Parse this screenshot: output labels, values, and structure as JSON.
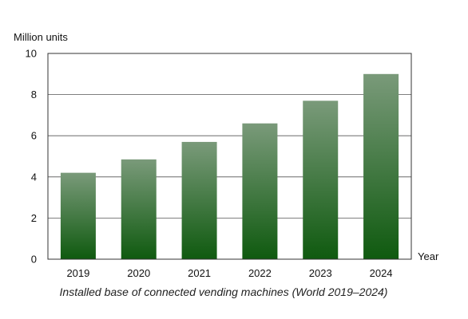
{
  "chart_data": {
    "type": "bar",
    "categories": [
      "2019",
      "2020",
      "2021",
      "2022",
      "2023",
      "2024"
    ],
    "values": [
      4.2,
      4.85,
      5.7,
      6.6,
      7.7,
      9.0
    ],
    "ylabel": "Million units",
    "xlabel": "Year",
    "caption": "Installed base of connected vending machines (World 2019–2024)",
    "ylim": [
      0,
      10
    ],
    "yticks": [
      0,
      2,
      4,
      6,
      8,
      10
    ],
    "grid": true,
    "colors": {
      "bar_top": "#7a9a7a",
      "bar_bottom": "#0f5a0f"
    }
  }
}
